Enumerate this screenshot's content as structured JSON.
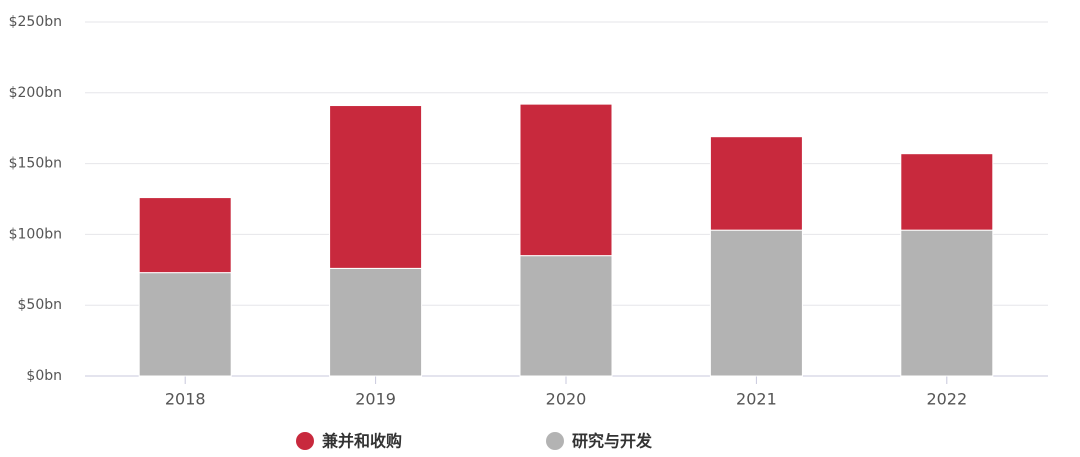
{
  "chart_data": {
    "type": "stacked-bar",
    "categories": [
      "2018",
      "2019",
      "2020",
      "2021",
      "2022"
    ],
    "series": [
      {
        "name": "兼并和收购",
        "color": "#c8293d",
        "values": [
          53,
          115,
          107,
          66,
          54
        ]
      },
      {
        "name": "研究与开发",
        "color": "#b3b3b3",
        "values": [
          73,
          76,
          85,
          103,
          103
        ]
      }
    ],
    "ylim": [
      0,
      250
    ],
    "yticks": [
      {
        "value": 0,
        "label": "$0bn"
      },
      {
        "value": 50,
        "label": "$50bn"
      },
      {
        "value": 100,
        "label": "$100bn"
      },
      {
        "value": 150,
        "label": "$150bn"
      },
      {
        "value": 200,
        "label": "$200bn"
      },
      {
        "value": 250,
        "label": "$250bn"
      }
    ],
    "grid": true
  }
}
